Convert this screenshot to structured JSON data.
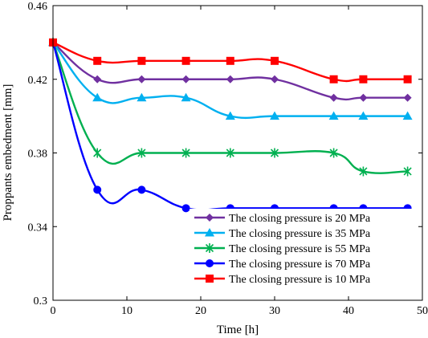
{
  "chart_data": {
    "type": "line",
    "xlabel": "Time [h]",
    "ylabel": "Proppants embedment [mm]",
    "xlim": [
      0,
      50
    ],
    "ylim": [
      0.3,
      0.46
    ],
    "x_ticks": [
      "0",
      "10",
      "20",
      "30",
      "40",
      "50"
    ],
    "y_ticks": [
      "0.3",
      "0.34",
      "0.38",
      "0.42",
      "0.46"
    ],
    "grid": false,
    "legend_position": "bottom-right",
    "series": [
      {
        "name": "The closing pressure is 20 MPa",
        "color": "#7030A0",
        "marker": "diamond",
        "x": [
          0,
          6,
          12,
          18,
          24,
          30,
          38,
          42,
          48
        ],
        "y": [
          0.44,
          0.42,
          0.42,
          0.42,
          0.42,
          0.42,
          0.41,
          0.41,
          0.41
        ]
      },
      {
        "name": "The closing pressure is 35 MPa",
        "color": "#00B0F0",
        "marker": "triangle",
        "x": [
          0,
          6,
          12,
          18,
          24,
          30,
          38,
          42,
          48
        ],
        "y": [
          0.44,
          0.41,
          0.41,
          0.41,
          0.4,
          0.4,
          0.4,
          0.4,
          0.4
        ]
      },
      {
        "name": "The closing pressure is 55 MPa",
        "color": "#00B050",
        "marker": "asterisk",
        "x": [
          0,
          6,
          12,
          18,
          24,
          30,
          38,
          42,
          48
        ],
        "y": [
          0.44,
          0.38,
          0.38,
          0.38,
          0.38,
          0.38,
          0.38,
          0.37,
          0.37
        ]
      },
      {
        "name": "The closing pressure is 70 MPa",
        "color": "#0000FF",
        "marker": "circle",
        "x": [
          0,
          6,
          12,
          18,
          24,
          30,
          38,
          42,
          48
        ],
        "y": [
          0.44,
          0.36,
          0.36,
          0.35,
          0.35,
          0.35,
          0.35,
          0.35,
          0.35
        ]
      },
      {
        "name": "The closing pressure is 10 MPa",
        "color": "#FF0000",
        "marker": "square",
        "x": [
          0,
          6,
          12,
          18,
          24,
          30,
          38,
          42,
          48
        ],
        "y": [
          0.44,
          0.43,
          0.43,
          0.43,
          0.43,
          0.43,
          0.42,
          0.42,
          0.42
        ]
      }
    ]
  }
}
